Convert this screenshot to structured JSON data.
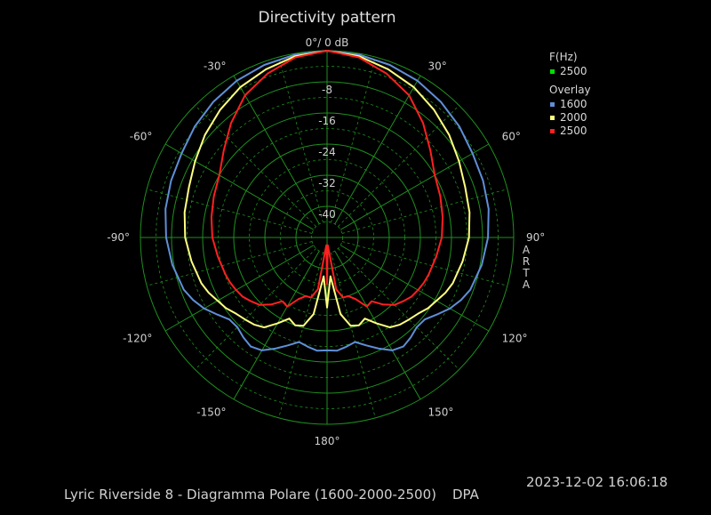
{
  "title": "Directivity pattern",
  "footer": {
    "description": "Lyric Riverside 8 - Diagramma Polare (1600-2000-2500)",
    "mode": "DPA",
    "datetime": "2023-12-02  16:06:18"
  },
  "vertical_label": "ARTA",
  "legend": {
    "freq_header": "F(Hz)",
    "freq_entries": [
      {
        "label": "2500",
        "color": "#00e000"
      }
    ],
    "overlay_header": "Overlay",
    "overlay_entries": [
      {
        "label": "1600",
        "color": "#5f8fd6"
      },
      {
        "label": "2000",
        "color": "#ffff80"
      },
      {
        "label": "2500",
        "color": "#ff2020"
      }
    ]
  },
  "colors": {
    "grid": "#1f8f1f",
    "background": "#000000",
    "text": "#d0d0d0"
  },
  "chart_data": {
    "type": "polar",
    "title": "Directivity pattern",
    "unit": "dB",
    "radial_range_db": [
      -48,
      0
    ],
    "radial_ticks": [
      "0°/ 0 dB",
      "-8",
      "-16",
      "-24",
      "-32",
      "-40"
    ],
    "angular_ticks": [
      "0°/ 0 dB",
      "30°",
      "60°",
      "90°",
      "120°",
      "150°",
      "180°",
      "-150°",
      "-120°",
      "-90°",
      "-60°",
      "-30°"
    ],
    "grid": true,
    "legend_position": "top-right",
    "series": [
      {
        "name": "1600",
        "color": "#5f8fd6",
        "angles_deg": [
          0,
          10,
          20,
          30,
          40,
          50,
          60,
          70,
          80,
          90,
          100,
          110,
          115,
          120,
          125,
          130,
          135,
          140,
          145,
          150,
          155,
          160,
          165,
          170,
          175,
          180
        ],
        "values_db": [
          0,
          -0.3,
          -0.8,
          -1.5,
          -2.5,
          -3.6,
          -4.8,
          -5.3,
          -5.8,
          -6.6,
          -7.6,
          -8.8,
          -10.0,
          -11.5,
          -13.5,
          -15.2,
          -15.4,
          -14.5,
          -13.8,
          -14.5,
          -16.5,
          -18.5,
          -20.2,
          -19.5,
          -18.8,
          -19.0
        ]
      },
      {
        "name": "2000",
        "color": "#ffff80",
        "angles_deg": [
          0,
          10,
          20,
          30,
          40,
          50,
          60,
          70,
          80,
          90,
          100,
          110,
          115,
          120,
          125,
          130,
          135,
          140,
          145,
          150,
          155,
          160,
          165,
          170,
          175,
          180
        ],
        "values_db": [
          0,
          -0.7,
          -2.0,
          -3.4,
          -5.2,
          -7.0,
          -8.8,
          -10.2,
          -10.8,
          -11.5,
          -12.6,
          -13.6,
          -14.4,
          -15.5,
          -16.3,
          -17.5,
          -18.2,
          -18.8,
          -19.8,
          -22.5,
          -25.0,
          -24.0,
          -24.5,
          -28.0,
          -38.0,
          -30.0
        ]
      },
      {
        "name": "2500",
        "color": "#ff2020",
        "angles_deg": [
          0,
          10,
          20,
          30,
          40,
          50,
          60,
          70,
          80,
          90,
          100,
          110,
          115,
          120,
          125,
          130,
          135,
          140,
          145,
          150,
          155,
          160,
          165,
          170,
          175,
          180
        ],
        "values_db": [
          0,
          -1.0,
          -3.2,
          -5.8,
          -9.6,
          -13.3,
          -16.0,
          -17.0,
          -17.8,
          -18.5,
          -19.5,
          -20.2,
          -20.5,
          -21.0,
          -21.5,
          -22.5,
          -23.5,
          -25.5,
          -28.0,
          -27.5,
          -30.5,
          -32.0,
          -32.0,
          -34.5,
          -46.0,
          -36.0
        ]
      }
    ]
  }
}
